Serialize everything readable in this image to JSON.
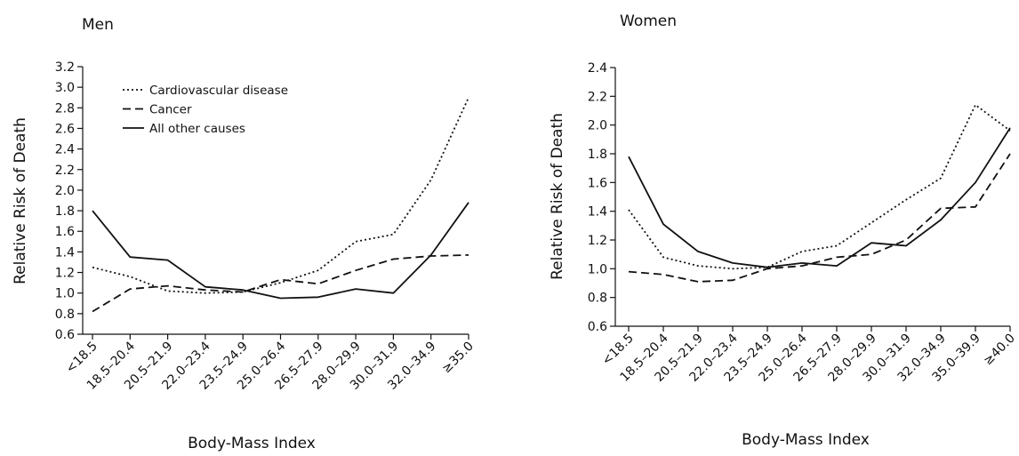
{
  "chart_data": [
    {
      "type": "line",
      "title": "Men",
      "xlabel": "Body-Mass Index",
      "ylabel": "Relative Risk of Death",
      "ylim": [
        0.6,
        3.2
      ],
      "yticks": [
        "0.6",
        "0.8",
        "1.0",
        "1.2",
        "1.4",
        "1.6",
        "1.8",
        "2.0",
        "2.2",
        "2.4",
        "2.6",
        "2.8",
        "3.0",
        "3.2"
      ],
      "categories": [
        "<18.5",
        "18.5–20.4",
        "20.5–21.9",
        "22.0–23.4",
        "23.5–24.9",
        "25.0–26.4",
        "26.5–27.9",
        "28.0–29.9",
        "30.0–31.9",
        "32.0–34.9",
        "≥35.0"
      ],
      "legend": "top-left",
      "series": [
        {
          "name": "Cardiovascular disease",
          "style": "dotted",
          "values": [
            1.25,
            1.16,
            1.02,
            1.0,
            1.01,
            1.1,
            1.22,
            1.5,
            1.57,
            2.1,
            2.9
          ]
        },
        {
          "name": "Cancer",
          "style": "dashed",
          "values": [
            0.82,
            1.04,
            1.07,
            1.03,
            1.01,
            1.13,
            1.09,
            1.22,
            1.33,
            1.36,
            1.37
          ]
        },
        {
          "name": "All other causes",
          "style": "solid",
          "values": [
            1.8,
            1.35,
            1.32,
            1.06,
            1.03,
            0.95,
            0.96,
            1.04,
            1.0,
            1.37,
            1.88
          ]
        }
      ]
    },
    {
      "type": "line",
      "title": "Women",
      "xlabel": "Body-Mass Index",
      "ylabel": "Relative Risk of Death",
      "ylim": [
        0.6,
        2.4
      ],
      "yticks": [
        "0.6",
        "0.8",
        "1.0",
        "1.2",
        "1.4",
        "1.6",
        "1.8",
        "2.0",
        "2.2",
        "2.4"
      ],
      "categories": [
        "<18.5",
        "18.5–20.4",
        "20.5–21.9",
        "22.0–23.4",
        "23.5–24.9",
        "25.0–26.4",
        "26.5–27.9",
        "28.0–29.9",
        "30.0–31.9",
        "32.0–34.9",
        "35.0–39.9",
        "≥40.0"
      ],
      "series": [
        {
          "name": "Cardiovascular disease",
          "style": "dotted",
          "values": [
            1.41,
            1.08,
            1.02,
            1.0,
            1.01,
            1.12,
            1.16,
            1.32,
            1.48,
            1.63,
            2.14,
            1.96
          ]
        },
        {
          "name": "Cancer",
          "style": "dashed",
          "values": [
            0.98,
            0.96,
            0.91,
            0.92,
            1.0,
            1.02,
            1.08,
            1.1,
            1.2,
            1.42,
            1.43,
            1.8
          ]
        },
        {
          "name": "All other causes",
          "style": "solid",
          "values": [
            1.78,
            1.31,
            1.12,
            1.04,
            1.01,
            1.04,
            1.02,
            1.18,
            1.16,
            1.34,
            1.6,
            1.98
          ]
        }
      ]
    }
  ]
}
